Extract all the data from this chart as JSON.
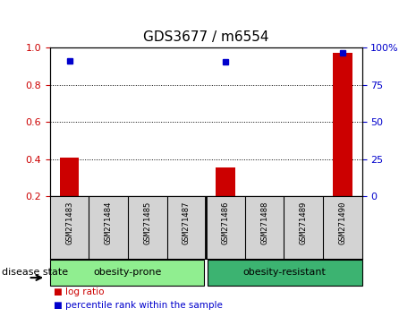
{
  "title": "GDS3677 / m6554",
  "samples": [
    "GSM271483",
    "GSM271484",
    "GSM271485",
    "GSM271487",
    "GSM271486",
    "GSM271488",
    "GSM271489",
    "GSM271490"
  ],
  "log_ratio": [
    0.41,
    0.0,
    0.0,
    0.0,
    0.355,
    0.0,
    0.0,
    0.97
  ],
  "percentile_rank": [
    0.91,
    0.0,
    0.0,
    0.0,
    0.905,
    0.0,
    0.0,
    0.965
  ],
  "groups": [
    {
      "label": "obesity-prone",
      "start": 0,
      "end": 4
    },
    {
      "label": "obesity-resistant",
      "start": 4,
      "end": 8
    }
  ],
  "bar_color": "#CC0000",
  "dot_color": "#0000CC",
  "ylim_left": [
    0.2,
    1.0
  ],
  "yticks_left": [
    0.2,
    0.4,
    0.6,
    0.8,
    1.0
  ],
  "ylim_right": [
    0,
    100
  ],
  "yticks_right": [
    0,
    25,
    50,
    75,
    100
  ],
  "axis_label_color_left": "#CC0000",
  "axis_label_color_right": "#0000CC",
  "bg_color": "#ffffff",
  "bar_width": 0.5,
  "disease_state_label": "disease state",
  "legend_log_ratio": "log ratio",
  "legend_percentile": "percentile rank within the sample",
  "xlabel_area_color": "#d3d3d3",
  "group1_color": "#90EE90",
  "group2_color": "#3CB371"
}
